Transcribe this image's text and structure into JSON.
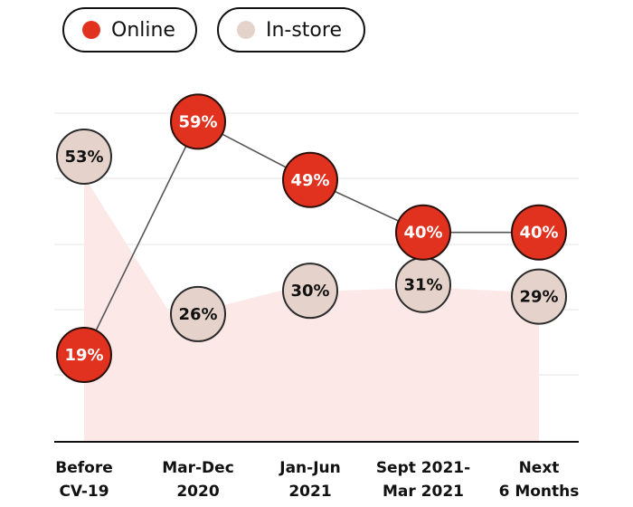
{
  "legend": {
    "online": "Online",
    "instore": "In-store"
  },
  "colors": {
    "online": "#e0321f",
    "online_border": "#2a0f0a",
    "instore": "#e5d3cb",
    "instore_border": "#2b2b2b",
    "area_fill": "#fde8e8",
    "gridline": "#e6e6e6",
    "line": "#555555"
  },
  "chart_data": {
    "type": "line",
    "categories": [
      [
        "Before",
        "CV-19"
      ],
      [
        "Mar-Dec",
        "2020"
      ],
      [
        "Jan-Jun",
        "2021"
      ],
      [
        "Sept 2021-",
        "Mar 2021"
      ],
      [
        "Next",
        "6 Months"
      ]
    ],
    "series": [
      {
        "name": "Online",
        "values": [
          19,
          59,
          49,
          40,
          40
        ],
        "labels": [
          "19%",
          "59%",
          "49%",
          "40%",
          "40%"
        ]
      },
      {
        "name": "In-store",
        "values": [
          53,
          26,
          30,
          31,
          29
        ],
        "labels": [
          "53%",
          "26%",
          "30%",
          "31%",
          "29%"
        ]
      }
    ],
    "ylim": [
      10,
      62
    ],
    "grid": true,
    "legend_position": "top-left",
    "xlabel": "",
    "ylabel": ""
  }
}
